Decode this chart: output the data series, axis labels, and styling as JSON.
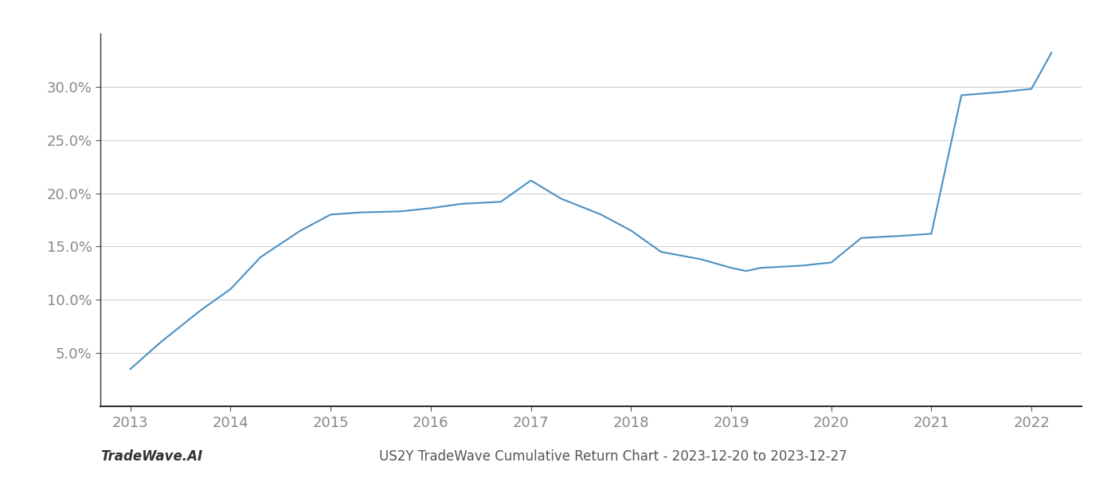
{
  "x": [
    2013,
    2013.3,
    2013.7,
    2014,
    2014.3,
    2014.7,
    2015,
    2015.3,
    2015.7,
    2016,
    2016.3,
    2016.7,
    2017,
    2017.3,
    2017.7,
    2018,
    2018.3,
    2018.7,
    2019,
    2019.15,
    2019.3,
    2019.7,
    2020,
    2020.3,
    2020.7,
    2021,
    2021.3,
    2021.7,
    2022,
    2022.2
  ],
  "y": [
    3.5,
    6.0,
    9.0,
    11.0,
    14.0,
    16.5,
    18.0,
    18.2,
    18.3,
    18.6,
    19.0,
    19.2,
    21.2,
    19.5,
    18.0,
    16.5,
    14.5,
    13.8,
    13.0,
    12.7,
    13.0,
    13.2,
    13.5,
    15.8,
    16.0,
    16.2,
    29.2,
    29.5,
    29.8,
    33.2
  ],
  "line_color": "#4a90c4",
  "line_width": 1.5,
  "background_color": "#ffffff",
  "grid_color": "#cccccc",
  "title": "US2Y TradeWave Cumulative Return Chart - 2023-12-20 to 2023-12-27",
  "footer_left": "TradeWave.AI",
  "xlim": [
    2012.7,
    2022.5
  ],
  "ylim": [
    0,
    35
  ],
  "yticks": [
    5,
    10,
    15,
    20,
    25,
    30
  ],
  "ytick_labels": [
    "5.0%",
    "10.0%",
    "15.0%",
    "20.0%",
    "25.0%",
    "30.0%"
  ],
  "xticks": [
    2013,
    2014,
    2015,
    2016,
    2017,
    2018,
    2019,
    2020,
    2021,
    2022
  ],
  "xtick_labels": [
    "2013",
    "2014",
    "2015",
    "2016",
    "2017",
    "2018",
    "2019",
    "2020",
    "2021",
    "2022"
  ],
  "tick_fontsize": 13,
  "footer_fontsize": 12,
  "title_fontsize": 12
}
